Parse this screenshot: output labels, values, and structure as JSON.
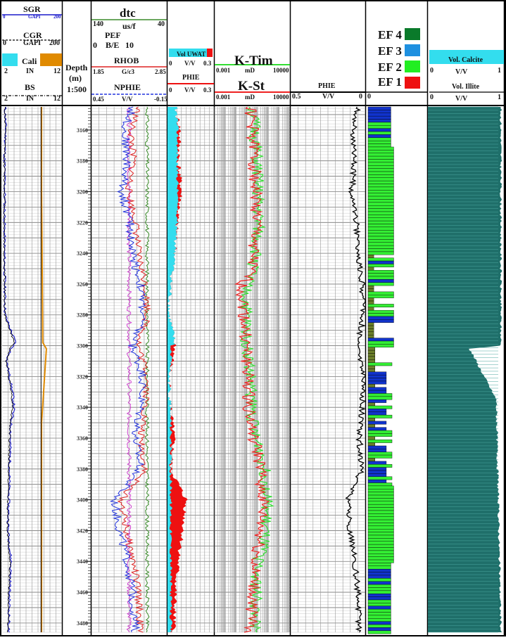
{
  "tracks": {
    "t1": {
      "sgr": {
        "name": "SGR",
        "scale_min": "0",
        "unit": "GAPI",
        "scale_max": "200"
      },
      "cgr": {
        "name": "CGR",
        "scale_min": "0",
        "unit": "GAPI",
        "scale_max": "200"
      },
      "cali": {
        "name": "Cali",
        "scale_min": "2",
        "unit": "IN",
        "scale_max": "12"
      },
      "bs": {
        "name": "BS",
        "scale_min": "2",
        "unit": "IN",
        "scale_max": "12"
      }
    },
    "depth": {
      "title": "Depth",
      "unit": "(m)",
      "scale": "1:500"
    },
    "t3": {
      "dtc": {
        "name": "dtc",
        "scale_min": "140",
        "unit": "us/f",
        "scale_max": "40"
      },
      "pef": {
        "name": "PEF",
        "scale_min": "0",
        "unit": "B/E",
        "scale_max": "10"
      },
      "rhob": {
        "name": "RHOB",
        "scale_min": "1.85",
        "unit": "G/c3",
        "scale_max": "2.85"
      },
      "nphie": {
        "name": "NPHIE",
        "scale_min": "0.45",
        "unit": "V/V",
        "scale_max": "-0.15"
      }
    },
    "t4": {
      "voluwat": {
        "name": "Vol UWAT",
        "scale_min": "0",
        "unit": "V/V",
        "scale_max": "0.3"
      },
      "phie": {
        "name": "PHIE",
        "scale_min": "0",
        "unit": "V/V",
        "scale_max": "0.3"
      }
    },
    "t5": {
      "ktim": {
        "name": "K-Tim",
        "scale_min": "0.001",
        "unit": "mD",
        "scale_max": "10000"
      },
      "kst": {
        "name": "K-St",
        "scale_min": "0.001",
        "unit": "mD",
        "scale_max": "10000"
      }
    },
    "t6": {
      "phie": {
        "name": "PHIE",
        "scale_min": "0.5",
        "unit": "V/V",
        "scale_max": "0"
      }
    },
    "t7": {
      "legend": [
        {
          "label": "EF 4",
          "color": "#0a7a2a"
        },
        {
          "label": "EF 3",
          "color": "#1e90e0"
        },
        {
          "label": "EF 2",
          "color": "#22ee22"
        },
        {
          "label": "EF 1",
          "color": "#ee1111"
        }
      ],
      "scale_min": "0"
    },
    "t8": {
      "calcite": {
        "name": "Vol. Calcite",
        "scale_min": "0",
        "unit": "V/V",
        "scale_max": "1"
      },
      "illite": {
        "name": "Vol. Illite",
        "scale_min": "0",
        "unit": "V/V",
        "scale_max": "1"
      }
    }
  },
  "colors": {
    "gr": "#1a1acc",
    "cali": "#e08a00",
    "dtc": "#3a8a2a",
    "pef": "#cc33cc",
    "rhob": "#dd2222",
    "nphie": "#2233dd",
    "water": "#33ddee",
    "phie_fill": "#ee1111",
    "ktim": "#33dd33",
    "kst": "#ee2222",
    "calcite": "#1f6f6a",
    "ef_lightgreen": "#33ee33",
    "ef_blue": "#1133cc",
    "ef_olive": "#6b7f2a"
  },
  "chart_data": {
    "type": "line",
    "title": "",
    "ylabel": "Depth (m)",
    "depth_range": [
      3145,
      3486
    ],
    "depth_ticks": [
      3160,
      3180,
      3200,
      3220,
      3240,
      3260,
      3280,
      3300,
      3320,
      3340,
      3360,
      3380,
      3400,
      3420,
      3440,
      3460,
      3480
    ],
    "depth_tick_labels": [
      "3160",
      "3180",
      "3200",
      "3220",
      "3240",
      "3260",
      "3280",
      "3300",
      "3320",
      "3340",
      "3360",
      "3380",
      "3400",
      "3420",
      "3440",
      "3460",
      "3480"
    ],
    "series": [
      {
        "name": "SGR",
        "unit": "GAPI",
        "depth": [
          3145,
          3160,
          3180,
          3200,
          3220,
          3240,
          3260,
          3280,
          3298,
          3302,
          3310,
          3320,
          3330,
          3340,
          3350,
          3360,
          3380,
          3400,
          3420,
          3440,
          3460,
          3486
        ],
        "values": [
          10,
          12,
          8,
          9,
          8,
          8,
          9,
          10,
          45,
          30,
          15,
          25,
          35,
          40,
          30,
          28,
          25,
          22,
          20,
          30,
          25,
          22
        ]
      },
      {
        "name": "Cali",
        "unit": "IN",
        "depth": [
          3145,
          3200,
          3298,
          3302,
          3350,
          3486
        ],
        "values": [
          8.6,
          8.6,
          8.8,
          9.4,
          8.6,
          8.6
        ]
      },
      {
        "name": "PHIE",
        "unit": "V/V",
        "depth": [
          3145,
          3160,
          3180,
          3200,
          3220,
          3240,
          3260,
          3280,
          3300,
          3320,
          3340,
          3360,
          3380,
          3400,
          3420,
          3440,
          3460,
          3486
        ],
        "values": [
          0.05,
          0.08,
          0.07,
          0.09,
          0.06,
          0.05,
          0.02,
          0.01,
          0.05,
          0.01,
          0.02,
          0.04,
          0.02,
          0.12,
          0.1,
          0.07,
          0.05,
          0.04
        ]
      },
      {
        "name": "K-Tim",
        "unit": "mD",
        "depth": [
          3145,
          3180,
          3220,
          3260,
          3300,
          3340,
          3360,
          3400,
          3440,
          3486
        ],
        "values": [
          3,
          8,
          12,
          0.8,
          1,
          3,
          5,
          80,
          10,
          4
        ]
      },
      {
        "name": "K-St",
        "unit": "mD",
        "depth": [
          3145,
          3180,
          3220,
          3260,
          3300,
          3340,
          3360,
          3400,
          3440,
          3486
        ],
        "values": [
          2,
          5,
          8,
          0.3,
          0.8,
          1.5,
          3,
          30,
          5,
          2
        ]
      },
      {
        "name": "Vol. Calcite",
        "unit": "V/V",
        "depth": [
          3145,
          3300,
          3302,
          3335,
          3486
        ],
        "values": [
          0.96,
          0.96,
          0.55,
          0.9,
          0.96
        ]
      }
    ],
    "facies_legend": [
      "EF 4",
      "EF 3",
      "EF 2",
      "EF 1"
    ]
  }
}
